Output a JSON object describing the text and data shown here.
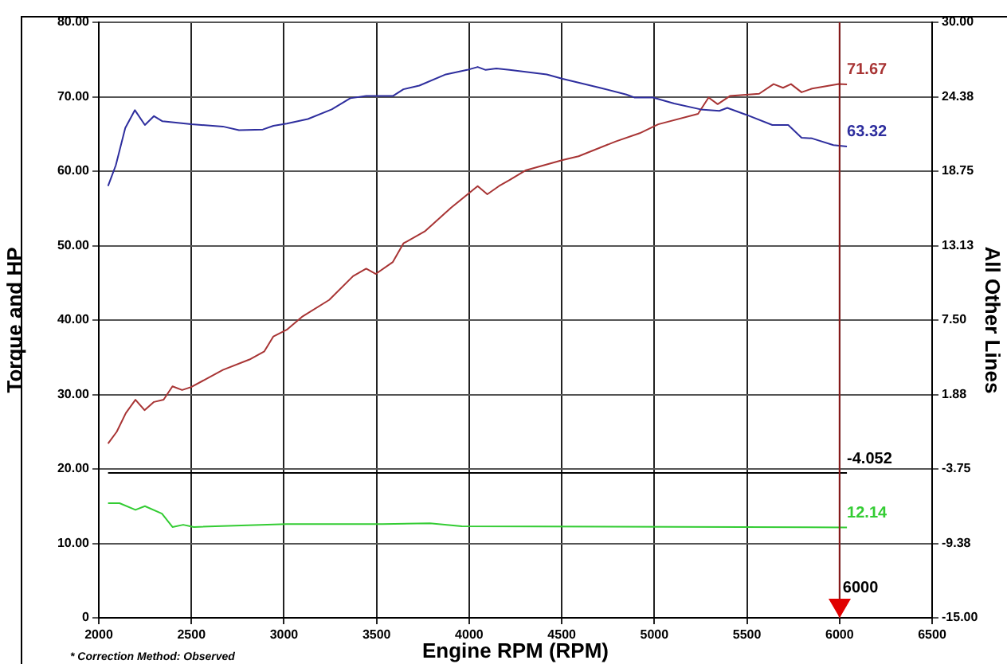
{
  "chart_data": {
    "type": "line",
    "xlabel": "Engine RPM (RPM)",
    "ylabel": "Torque and HP",
    "y2label": "All Other Lines",
    "xlim": [
      2000,
      6500
    ],
    "xticks": [
      2000,
      2500,
      3000,
      3500,
      4000,
      4500,
      5000,
      5500,
      6000,
      6500
    ],
    "ylim": [
      0,
      80
    ],
    "yticks": [
      0,
      {
        "value": 10,
        "label": "10.00"
      },
      {
        "value": 20,
        "label": "20.00"
      },
      {
        "value": 30,
        "label": "30.00"
      },
      {
        "value": 40,
        "label": "40.00"
      },
      {
        "value": 50,
        "label": "50.00"
      },
      {
        "value": 60,
        "label": "60.00"
      },
      {
        "value": 70,
        "label": "70.00"
      },
      {
        "value": 80,
        "label": "80.00"
      }
    ],
    "y2lim": [
      -15,
      30
    ],
    "y2ticks": [
      {
        "value": -15,
        "label": "-15.00"
      },
      {
        "value": -9.375,
        "label": "-9.38"
      },
      {
        "value": -3.75,
        "label": "-3.75"
      },
      {
        "value": 1.875,
        "label": "1.88"
      },
      {
        "value": 7.5,
        "label": "7.50"
      },
      {
        "value": 13.125,
        "label": "13.13"
      },
      {
        "value": 18.75,
        "label": "18.75"
      },
      {
        "value": 24.375,
        "label": "24.38"
      },
      {
        "value": 30,
        "label": "30.00"
      }
    ],
    "grid": true,
    "legend": false,
    "marker": "none",
    "line_style": "solid",
    "series": [
      {
        "color": "#2e2e9e",
        "x": [
          2050,
          2092,
          2143,
          2195,
          2249,
          2298,
          2344,
          2499,
          2670,
          2757,
          2886,
          2943,
          3015,
          3129,
          3258,
          3358,
          3444,
          3588,
          3645,
          3731,
          3874,
          3989,
          4046,
          4089,
          4147,
          4218,
          4419,
          4505,
          4706,
          4849,
          4892,
          4993,
          5107,
          5250,
          5351,
          5394,
          5494,
          5637,
          5723,
          5795,
          5852,
          5967,
          6040
        ],
        "values": [
          58.0,
          60.8,
          65.8,
          68.2,
          66.2,
          67.4,
          66.7,
          66.3,
          66.0,
          65.5,
          65.6,
          66.1,
          66.4,
          67.0,
          68.3,
          69.8,
          70.1,
          70.1,
          71.0,
          71.5,
          73.0,
          73.6,
          74.0,
          73.6,
          73.8,
          73.6,
          73.0,
          72.4,
          71.2,
          70.3,
          69.9,
          69.9,
          69.1,
          68.3,
          68.1,
          68.5,
          67.6,
          66.2,
          66.2,
          64.5,
          64.4,
          63.5,
          63.32
        ],
        "value_labels": [
          null,
          null,
          null,
          null,
          null,
          null,
          null,
          null,
          null,
          null,
          null,
          null,
          null,
          null,
          null,
          null,
          null,
          null,
          null,
          null,
          null,
          null,
          null,
          null,
          null,
          null,
          null,
          null,
          null,
          null,
          null,
          null,
          null,
          null,
          null,
          null,
          null,
          null,
          null,
          null,
          null,
          null,
          "63.32"
        ]
      },
      {
        "color": "#a83434",
        "x": [
          2050,
          2097,
          2146,
          2198,
          2247,
          2298,
          2350,
          2398,
          2450,
          2499,
          2670,
          2814,
          2894,
          2943,
          3015,
          3101,
          3244,
          3373,
          3444,
          3496,
          3588,
          3645,
          3760,
          3903,
          4046,
          4098,
          4161,
          4218,
          4304,
          4505,
          4591,
          4792,
          4921,
          5021,
          5236,
          5293,
          5342,
          5408,
          5566,
          5644,
          5695,
          5738,
          5795,
          5852,
          5996,
          6040
        ],
        "values": [
          23.4,
          25.0,
          27.5,
          29.3,
          27.9,
          29.0,
          29.3,
          31.1,
          30.6,
          31.0,
          33.3,
          34.7,
          35.8,
          37.8,
          38.7,
          40.5,
          42.7,
          45.9,
          46.9,
          46.2,
          47.8,
          50.3,
          51.9,
          55.1,
          58.0,
          56.9,
          58.0,
          58.8,
          60.1,
          61.5,
          62.0,
          64.0,
          65.1,
          66.3,
          67.7,
          69.9,
          69.0,
          70.1,
          70.4,
          71.7,
          71.2,
          71.7,
          70.6,
          71.1,
          71.7,
          71.67
        ],
        "value_labels": [
          null,
          null,
          null,
          null,
          null,
          null,
          null,
          null,
          null,
          null,
          null,
          null,
          null,
          null,
          null,
          null,
          null,
          null,
          null,
          null,
          null,
          null,
          null,
          null,
          null,
          null,
          null,
          null,
          null,
          null,
          null,
          null,
          null,
          null,
          null,
          null,
          null,
          null,
          null,
          null,
          null,
          null,
          null,
          null,
          null,
          "71.67"
        ]
      },
      {
        "color": "#33cc33",
        "x": [
          2050,
          2112,
          2198,
          2249,
          2341,
          2398,
          2456,
          2513,
          3015,
          3531,
          3788,
          3960,
          6040
        ],
        "values": [
          15.4,
          15.4,
          14.5,
          15.0,
          14.0,
          12.2,
          12.5,
          12.2,
          12.6,
          12.6,
          12.7,
          12.3,
          12.14
        ],
        "value_labels": [
          null,
          null,
          null,
          null,
          null,
          null,
          null,
          null,
          null,
          null,
          null,
          null,
          "12.14"
        ]
      },
      {
        "color": "#000000",
        "axis": "y2",
        "x": [
          2050,
          6040
        ],
        "values": [
          -4.052,
          -4.052
        ],
        "value_labels": [
          null,
          "-4.052"
        ]
      }
    ],
    "ref_lines": [
      {
        "axis": "x",
        "value": 6000,
        "label": "6000",
        "color": "#8b1a1a"
      }
    ],
    "annotations": [
      "* Correction Method: Observed"
    ]
  }
}
